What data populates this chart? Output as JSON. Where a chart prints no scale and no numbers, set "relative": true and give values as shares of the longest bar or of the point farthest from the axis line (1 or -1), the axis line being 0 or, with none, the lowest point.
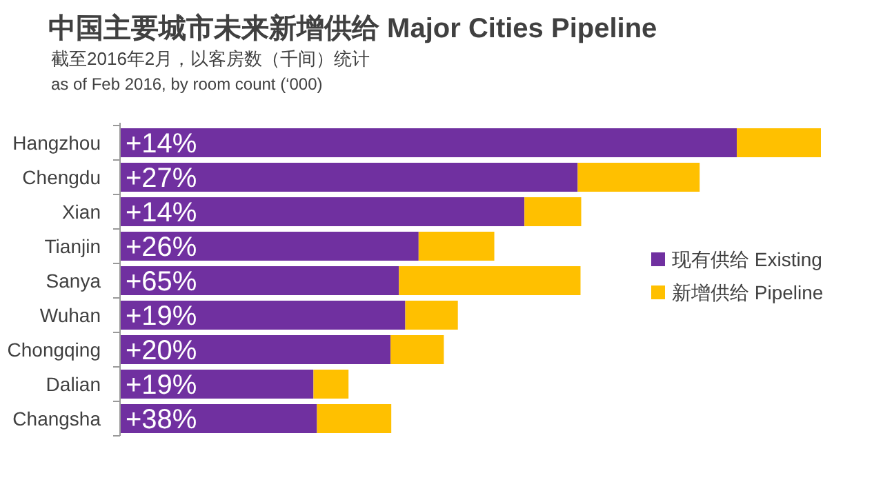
{
  "chart_data": {
    "type": "bar",
    "orientation": "horizontal",
    "stacked": true,
    "relative": true,
    "title": "中国主要城市未来新增供给 Major Cities Pipeline",
    "subtitle": "截至2016年2月，以客房数（千间）统计",
    "annotations": [
      "as of Feb 2016, by room count (‘000)",
      {
        "text": "+14%",
        "y": "Hangzhou"
      },
      {
        "text": "+27%",
        "y": "Chengdu"
      },
      {
        "text": "+14%",
        "y": "Xian"
      },
      {
        "text": "+26%",
        "y": "Tianjin"
      },
      {
        "text": "+65%",
        "y": "Sanya"
      },
      {
        "text": "+19%",
        "y": "Wuhan"
      },
      {
        "text": "+20%",
        "y": "Chongqing"
      },
      {
        "text": "+19%",
        "y": "Dalian"
      },
      {
        "text": "+38%",
        "y": "Changsha"
      }
    ],
    "categories": [
      "Hangzhou",
      "Chengdu",
      "Xian",
      "Tianjin",
      "Sanya",
      "Wuhan",
      "Chongqing",
      "Dalian",
      "Changsha"
    ],
    "series": [
      {
        "name": "现有供给 Existing",
        "color": "#7030a0",
        "values": [
          0.88,
          0.653,
          0.577,
          0.426,
          0.398,
          0.407,
          0.386,
          0.276,
          0.281
        ]
      },
      {
        "name": "新增供给 Pipeline",
        "color": "#ffc000",
        "values": [
          0.12,
          0.174,
          0.081,
          0.108,
          0.259,
          0.075,
          0.076,
          0.05,
          0.106
        ]
      }
    ],
    "legend": "right"
  }
}
